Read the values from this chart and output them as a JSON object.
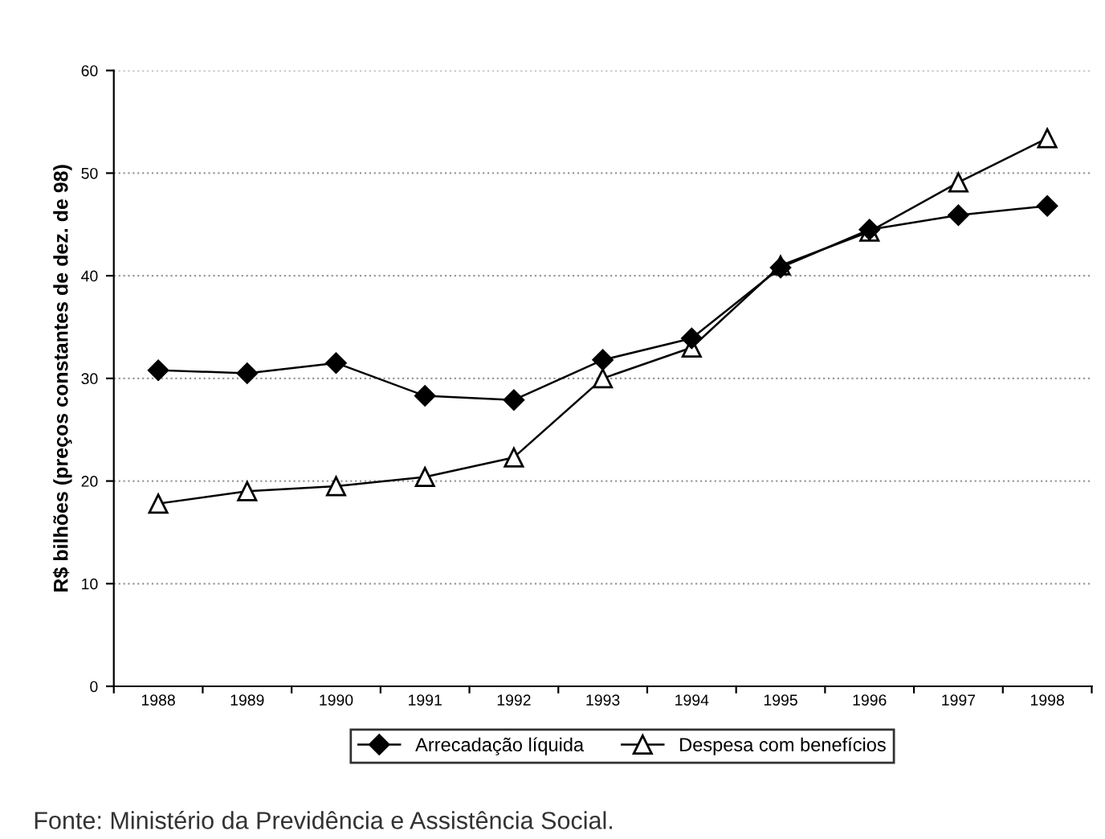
{
  "chart_data": {
    "type": "line",
    "ylabel": "R$ bilhões (preços constantes de dez. de 98)",
    "categories": [
      "1988",
      "1989",
      "1990",
      "1991",
      "1992",
      "1993",
      "1994",
      "1995",
      "1996",
      "1997",
      "1998"
    ],
    "series": [
      {
        "name": "Arrecadação líquida",
        "color": "#000000",
        "marker": "diamond",
        "values": [
          30.8,
          30.5,
          31.5,
          28.3,
          27.9,
          31.8,
          33.9,
          40.8,
          44.5,
          45.9,
          46.8
        ]
      },
      {
        "name": "Despesa com benefícios",
        "color": "#000000",
        "marker": "triangle",
        "values": [
          17.8,
          19.0,
          19.5,
          20.4,
          22.3,
          30.0,
          33.0,
          41.0,
          44.3,
          49.1,
          53.4
        ]
      }
    ],
    "ylim": [
      0,
      60
    ],
    "yticks": [
      0,
      10,
      20,
      30,
      40,
      50,
      60
    ],
    "grid": "y",
    "legend": "bottom",
    "line_style": "solid",
    "annotations": [
      "Fonte: Ministério da Previdência e Assistência Social."
    ]
  }
}
